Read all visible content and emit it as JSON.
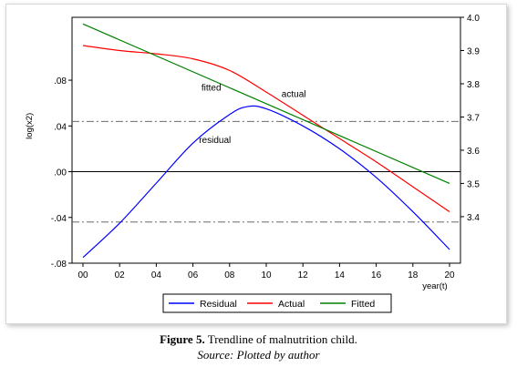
{
  "chart_data": {
    "type": "line",
    "xlabel": "year(t)",
    "ylabel_left": "log(x2)",
    "x_ticks": [
      0,
      2,
      4,
      6,
      8,
      10,
      12,
      14,
      16,
      18,
      20
    ],
    "x_tick_labels": [
      "00",
      "02",
      "04",
      "06",
      "08",
      "10",
      "12",
      "14",
      "16",
      "18",
      "20"
    ],
    "y_left_ticks": [
      -0.08,
      -0.04,
      0.0,
      0.04,
      0.08
    ],
    "y_left_tick_labels": [
      "-.08",
      "-.04",
      ".00",
      ".04",
      ".08"
    ],
    "y_left_lim": [
      -0.08,
      0.135
    ],
    "y_right_ticks": [
      3.4,
      3.5,
      3.6,
      3.7,
      3.8,
      3.9,
      4.0
    ],
    "y_right_tick_labels": [
      "3.4",
      "3.5",
      "3.6",
      "3.7",
      "3.8",
      "3.9",
      "4.0"
    ],
    "y_right_lim": [
      3.26,
      4.0
    ],
    "zero_line": 0.0,
    "band_lines": [
      0.044,
      -0.044
    ],
    "series": [
      {
        "name": "Residual",
        "axis": "left",
        "color": "#0000ff",
        "x": [
          0,
          2,
          4,
          6,
          8,
          9,
          10,
          12,
          14,
          16,
          18,
          20
        ],
        "values": [
          -0.075,
          -0.045,
          -0.01,
          0.025,
          0.05,
          0.057,
          0.055,
          0.04,
          0.02,
          -0.005,
          -0.035,
          -0.068
        ]
      },
      {
        "name": "Actual",
        "axis": "right",
        "color": "#ff0000",
        "x": [
          0,
          2,
          4,
          6,
          8,
          10,
          12,
          14,
          16,
          18,
          20
        ],
        "values": [
          3.915,
          3.9,
          3.89,
          3.875,
          3.84,
          3.775,
          3.705,
          3.635,
          3.565,
          3.49,
          3.415
        ]
      },
      {
        "name": "Fitted",
        "axis": "right",
        "color": "#008000",
        "x": [
          0,
          20
        ],
        "values": [
          3.98,
          3.5
        ]
      }
    ],
    "annotations": [
      {
        "text": "fitted",
        "x": 7,
        "y_axis": "right",
        "y": 3.78
      },
      {
        "text": "actual",
        "x": 11.5,
        "y_axis": "right",
        "y": 3.76
      },
      {
        "text": "residual",
        "x": 7.2,
        "y_axis": "left",
        "y": 0.025
      }
    ],
    "legend_position": "bottom"
  },
  "caption": {
    "figure_label": "Figure 5.",
    "title": " Trendline of malnutrition child.",
    "source": "Source: Plotted by author"
  }
}
